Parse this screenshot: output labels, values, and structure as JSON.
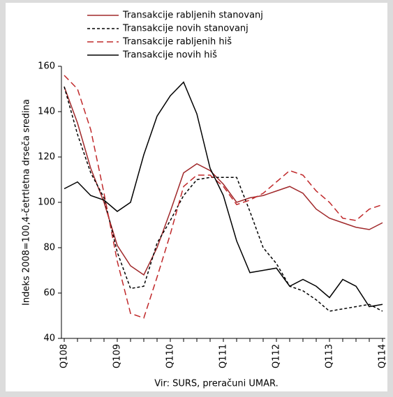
{
  "chart_data": {
    "type": "line",
    "y_label": "Indeks 2008=100,4-četrtletna drseča sredina",
    "source": "Vir: SURS,  preračuni UMAR.",
    "categories": [
      "Q108",
      null,
      null,
      null,
      "Q109",
      null,
      null,
      null,
      "Q110",
      null,
      null,
      null,
      "Q111",
      null,
      null,
      null,
      "Q112",
      null,
      null,
      null,
      "Q113",
      null,
      null,
      null,
      "Q114"
    ],
    "series": [
      {
        "name": "Transakcije rabljenih stanovanj",
        "color": "#a0282a",
        "dash": "none",
        "values": [
          151,
          135,
          115,
          100,
          81,
          72,
          68,
          80,
          96,
          113,
          117,
          114,
          108,
          100,
          102,
          103,
          105,
          107,
          104,
          97,
          93,
          91,
          89,
          88,
          91
        ]
      },
      {
        "name": "Transakcije novih stanovanj",
        "color": "#000000",
        "dash": "4,3",
        "values": [
          151,
          130,
          113,
          102,
          78,
          62,
          63,
          82,
          92,
          103,
          110,
          111,
          111,
          111,
          96,
          80,
          73,
          63,
          61,
          57,
          52,
          53,
          54,
          55,
          52
        ]
      },
      {
        "name": "Transakcije rabljenih hiš",
        "color": "#c0282a",
        "dash": "9,5",
        "values": [
          156,
          150,
          132,
          104,
          74,
          51,
          49,
          67,
          86,
          107,
          112,
          112,
          107,
          99,
          101,
          104,
          109,
          114,
          112,
          105,
          100,
          93,
          92,
          97,
          99
        ]
      },
      {
        "name": "Transakcije novih hiš",
        "color": "#000000",
        "dash": "none",
        "values": [
          106,
          109,
          103,
          101,
          96,
          100,
          121,
          138,
          147,
          153,
          139,
          115,
          103,
          83,
          69,
          70,
          71,
          63,
          66,
          63,
          58,
          66,
          63,
          54,
          55
        ]
      }
    ],
    "ylim": [
      40,
      160
    ],
    "yticks": [
      40,
      60,
      80,
      100,
      120,
      140,
      160
    ],
    "grid": false
  }
}
